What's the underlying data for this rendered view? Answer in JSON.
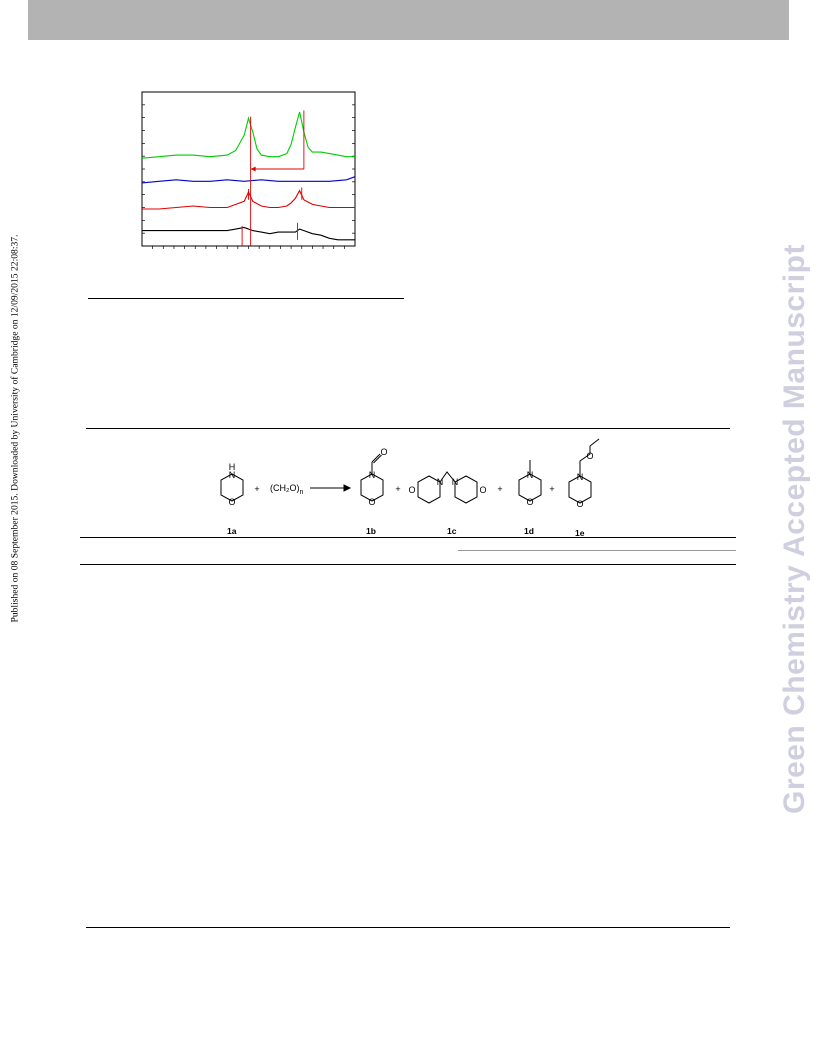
{
  "watermark": "Green Chemistry Accepted Manuscript",
  "side_note": "Published on 08 September 2015. Downloaded by University of Cambridge on 12/09/2015 22:08:37.",
  "scheme": {
    "reagent": "(CH₂O)",
    "reagent_subscript": "n",
    "plus": "+",
    "atom_N": "N",
    "atom_H": "H",
    "atom_O": "O",
    "compounds": [
      "1a",
      "1b",
      "1c",
      "1d",
      "1e"
    ]
  },
  "chart_data": {
    "type": "line",
    "title": "",
    "xlabel": "",
    "ylabel": "",
    "xlim": [
      0,
      100
    ],
    "ylim": [
      0,
      100
    ],
    "grid": false,
    "series": [
      {
        "color": "#00cc00",
        "x": [
          0,
          8,
          16,
          24,
          32,
          40,
          44,
          48,
          50,
          52,
          54,
          56,
          60,
          64,
          68,
          70,
          72,
          74,
          76,
          78,
          80,
          84,
          88,
          92,
          96,
          100
        ],
        "y": [
          57,
          58,
          59,
          59,
          58,
          59,
          62,
          72,
          83,
          74,
          63,
          59,
          58,
          58,
          60,
          66,
          77,
          87,
          74,
          64,
          61,
          61,
          60,
          59,
          58,
          58
        ]
      },
      {
        "color": "#0000cc",
        "x": [
          0,
          8,
          16,
          24,
          32,
          40,
          48,
          56,
          64,
          72,
          80,
          88,
          96,
          100
        ],
        "y": [
          41,
          42,
          43,
          42,
          42,
          43,
          42,
          43,
          42,
          42,
          42,
          42,
          43,
          45
        ]
      },
      {
        "color": "#dd0000",
        "x": [
          0,
          8,
          16,
          24,
          32,
          40,
          44,
          48,
          50,
          52,
          56,
          60,
          64,
          68,
          70,
          72,
          74,
          76,
          80,
          84,
          88,
          92,
          96,
          100
        ],
        "y": [
          24,
          24,
          25,
          26,
          25,
          25,
          27,
          29,
          35,
          29,
          26,
          25,
          25,
          26,
          28,
          31,
          36,
          30,
          27,
          26,
          25,
          25,
          25,
          25
        ]
      },
      {
        "color": "#000000",
        "x": [
          0,
          8,
          16,
          24,
          32,
          40,
          44,
          48,
          52,
          56,
          60,
          64,
          68,
          72,
          74,
          76,
          80,
          84,
          88,
          92,
          96,
          100
        ],
        "y": [
          10,
          10,
          10,
          10,
          10,
          10,
          11,
          12,
          10,
          9,
          8,
          9,
          9,
          9,
          11,
          10,
          8,
          7,
          5,
          4,
          4,
          4
        ]
      }
    ],
    "markers": [
      {
        "color": "#dd0000",
        "x": 51,
        "from": 0,
        "to": 84
      },
      {
        "color": "#dd0000",
        "x": 76,
        "from": 50,
        "to": 88
      },
      {
        "color": "#dd0000",
        "x": 50,
        "from": 30,
        "to": 37
      },
      {
        "color": "#dd0000",
        "x": 75,
        "from": 30,
        "to": 38
      },
      {
        "color": "#dd0000",
        "x": 47,
        "from": 0,
        "to": 13
      },
      {
        "color": "#dd0000",
        "x": 73,
        "from": 4,
        "to": 15
      }
    ],
    "arrow": {
      "color": "#dd0000",
      "from_x": 76,
      "to_x": 51,
      "y": 50
    }
  }
}
